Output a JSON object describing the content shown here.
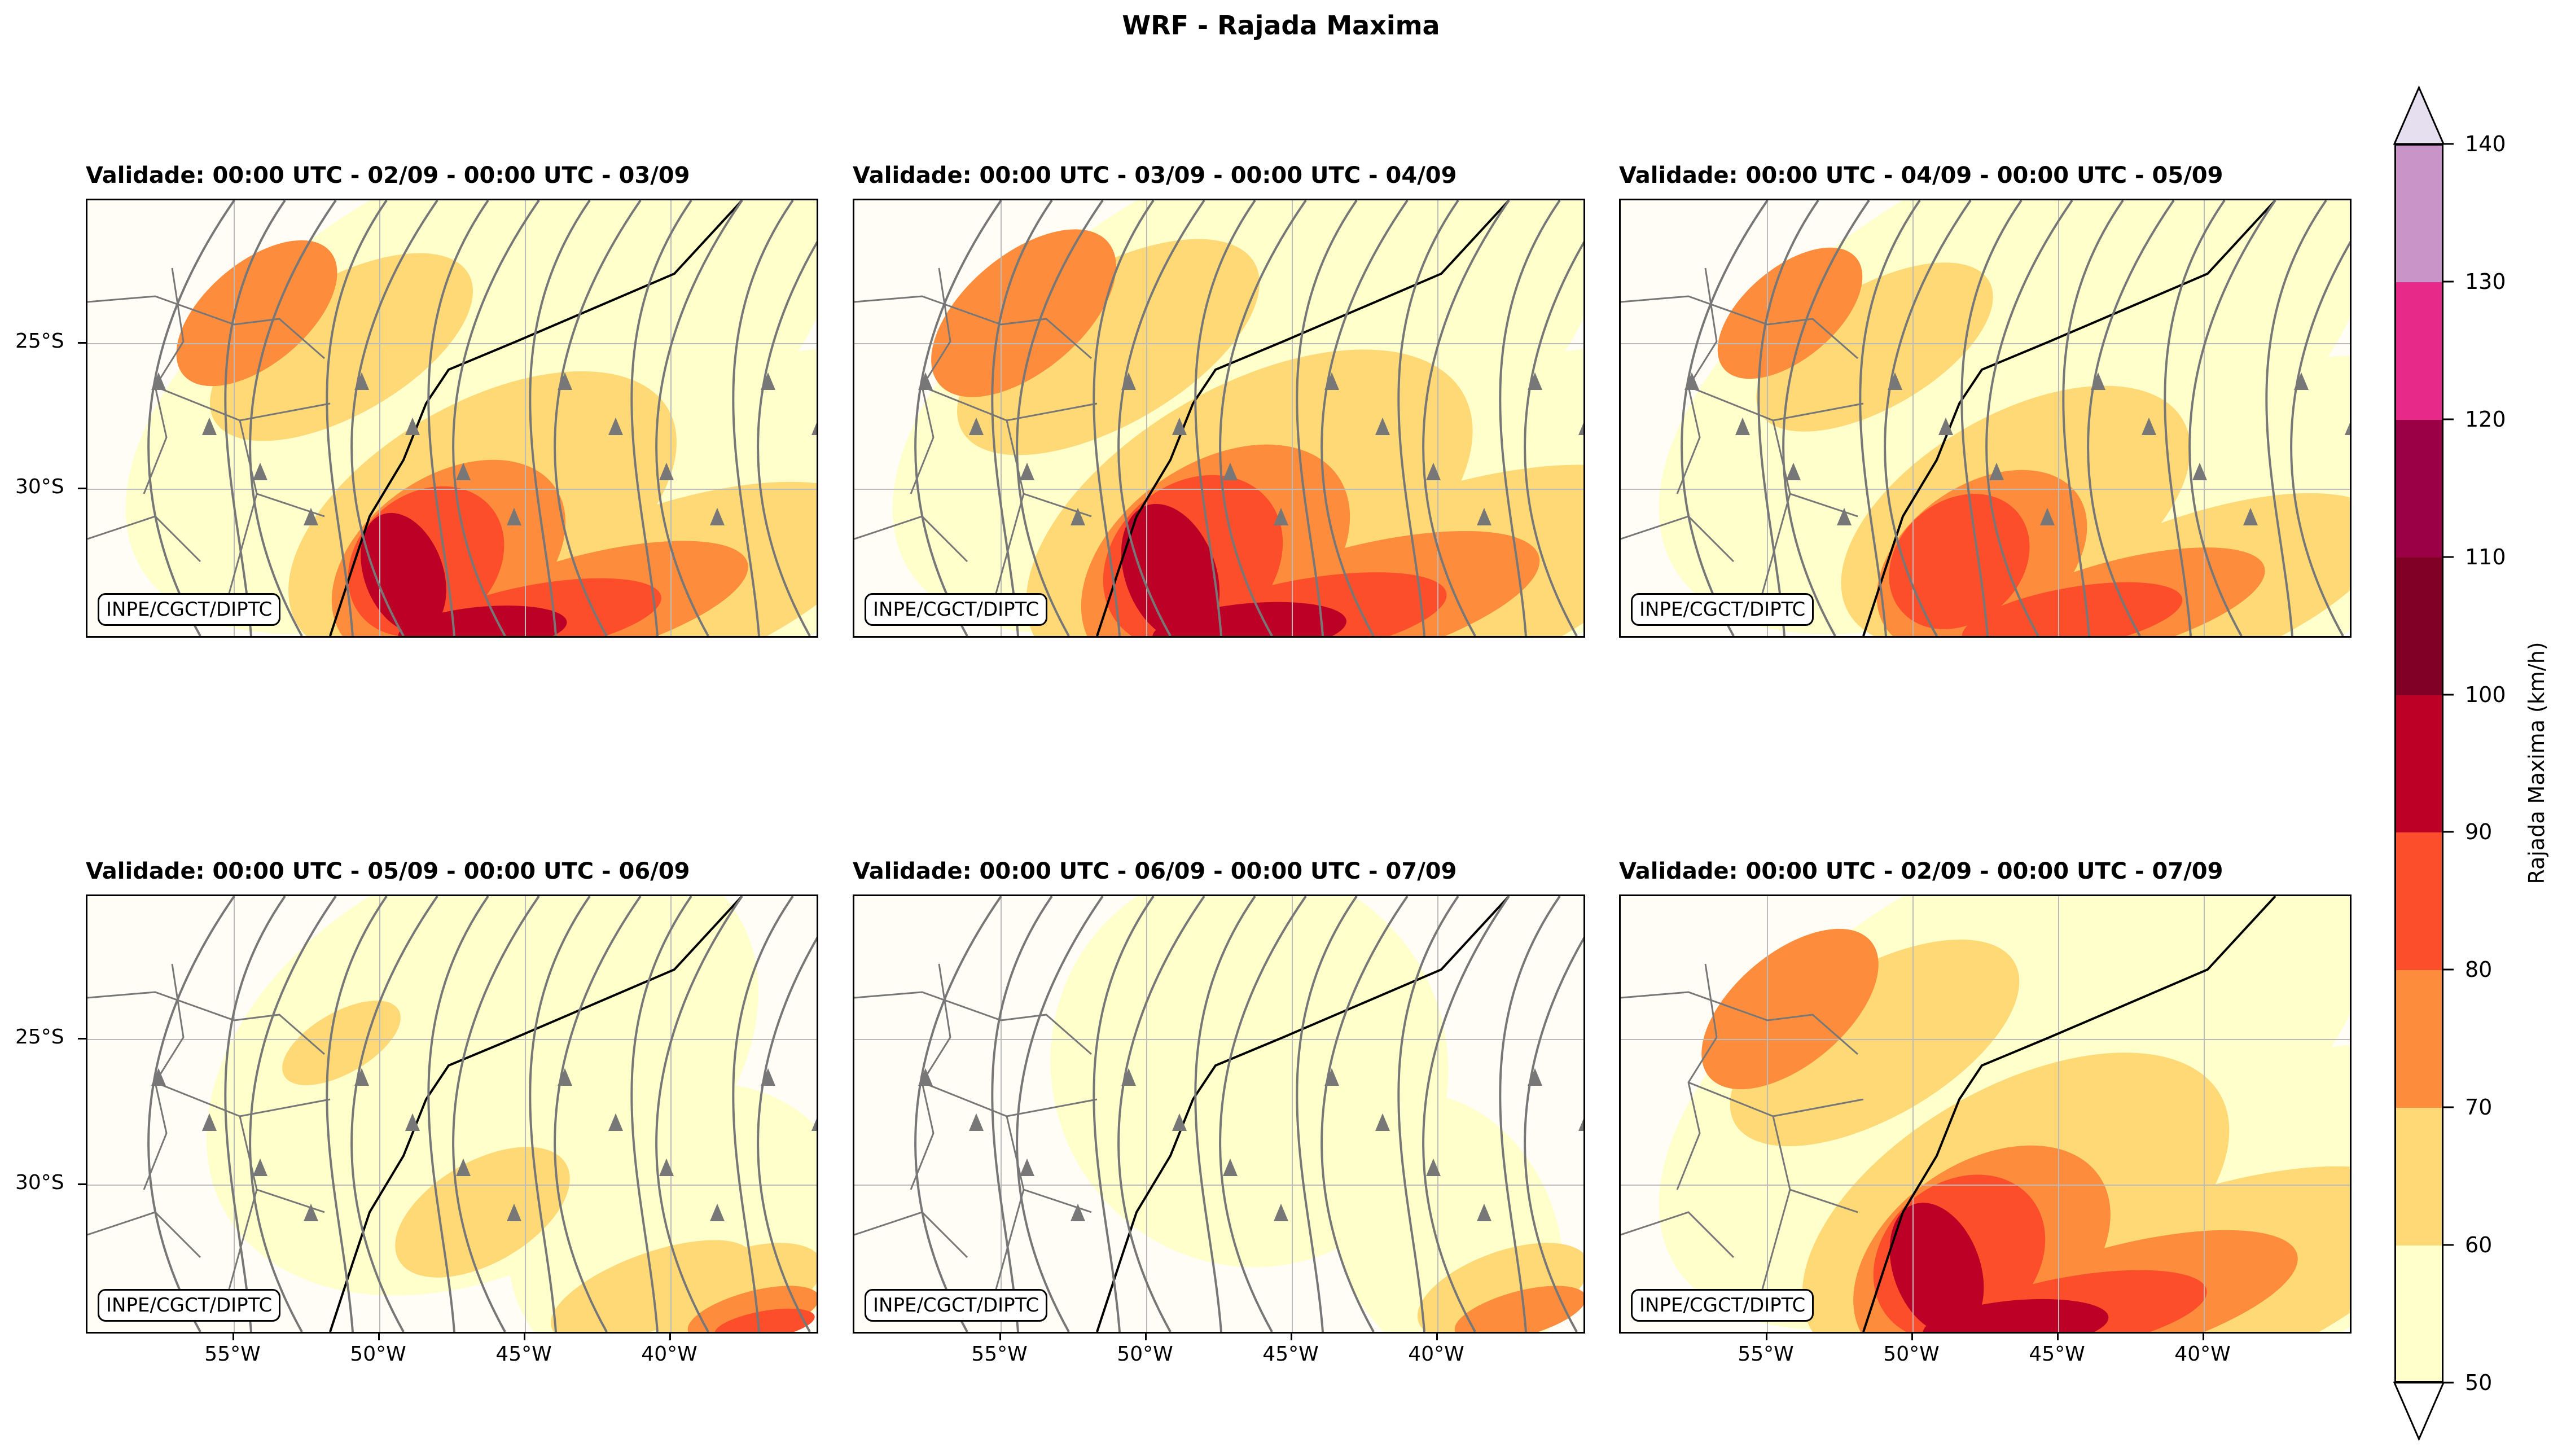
{
  "title": "WRF - Rajada Maxima",
  "panels": [
    {
      "title": "Validade: 00:00 UTC - 02/09 - 00:00 UTC - 03/09",
      "credit": "INPE/CGCT/DIPTC",
      "intensity": 1.0,
      "streamlines": true
    },
    {
      "title": "Validade: 00:00 UTC - 03/09 - 00:00 UTC - 04/09",
      "credit": "INPE/CGCT/DIPTC",
      "intensity": 1.15,
      "streamlines": true
    },
    {
      "title": "Validade: 00:00 UTC - 04/09 - 00:00 UTC - 05/09",
      "credit": "INPE/CGCT/DIPTC",
      "intensity": 0.9,
      "streamlines": true
    },
    {
      "title": "Validade: 00:00 UTC - 05/09 - 00:00 UTC - 06/09",
      "credit": "INPE/CGCT/DIPTC",
      "intensity": 0.45,
      "streamlines": true
    },
    {
      "title": "Validade: 00:00 UTC - 06/09 - 00:00 UTC - 07/09",
      "credit": "INPE/CGCT/DIPTC",
      "intensity": 0.2,
      "streamlines": true
    },
    {
      "title": "Validade: 00:00 UTC - 02/09 - 00:00 UTC - 07/09",
      "credit": "INPE/CGCT/DIPTC",
      "intensity": 1.1,
      "streamlines": false
    }
  ],
  "lat_labels": [
    "25°S",
    "30°S"
  ],
  "lon_labels": [
    "55°W",
    "50°W",
    "45°W",
    "40°W"
  ],
  "colorbar": {
    "label": "Rajada Maxima (km/h)",
    "ticks": [
      "50",
      "60",
      "70",
      "80",
      "90",
      "100",
      "110",
      "120",
      "130",
      "140"
    ],
    "bins": [
      {
        "from": 50,
        "to": 60,
        "color": "#ffffcc"
      },
      {
        "from": 60,
        "to": 70,
        "color": "#fed976"
      },
      {
        "from": 70,
        "to": 80,
        "color": "#fd8d3c"
      },
      {
        "from": 80,
        "to": 90,
        "color": "#fc4e2a"
      },
      {
        "from": 90,
        "to": 100,
        "color": "#bd0026"
      },
      {
        "from": 100,
        "to": 110,
        "color": "#800026"
      },
      {
        "from": 110,
        "to": 120,
        "color": "#9b0046"
      },
      {
        "from": 120,
        "to": 130,
        "color": "#e7298a"
      },
      {
        "from": 130,
        "to": 140,
        "color": "#c994c7"
      }
    ],
    "over_color": "#e6dff0",
    "under_color": "#ffffff"
  }
}
